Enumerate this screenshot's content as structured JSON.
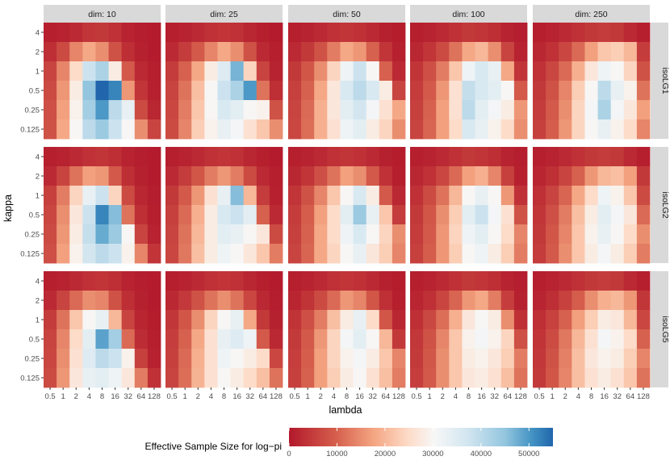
{
  "chart_data": {
    "type": "heatmap",
    "xlabel": "lambda",
    "ylabel": "kappa",
    "x_categories": [
      "0.5",
      "1",
      "2",
      "4",
      "8",
      "16",
      "32",
      "64",
      "128"
    ],
    "y_categories": [
      "4",
      "2",
      "1",
      "0.5",
      "0.25",
      "0.125"
    ],
    "column_facets": [
      "dim: 10",
      "dim: 25",
      "dim: 50",
      "dim: 100",
      "dim: 250"
    ],
    "row_facets": [
      "isoLG1",
      "isoLG2",
      "isoLG5"
    ],
    "legend": {
      "title": "Effective Sample Size for log−pi",
      "ticks": [
        "0",
        "10000",
        "20000",
        "30000",
        "40000",
        "50000"
      ],
      "min": 0,
      "max": 55000,
      "colors": {
        "low": "#b2182b",
        "low_mid": "#ef8a62",
        "low_mid2": "#fddbc7",
        "mid": "#f7f7f7",
        "high_mid": "#d1e5f0",
        "high_mid2": "#67a9cf",
        "high": "#2166ac"
      }
    },
    "panels": [
      {
        "column": "dim: 10",
        "row": "isoLG1",
        "values": [
          [
            1000,
            1500,
            2500,
            4000,
            4500,
            3500,
            1500,
            800,
            500
          ],
          [
            3000,
            7000,
            14000,
            18000,
            15000,
            8000,
            3000,
            1200,
            600
          ],
          [
            6000,
            14000,
            25000,
            38000,
            42000,
            28000,
            9000,
            2500,
            900
          ],
          [
            7000,
            16000,
            28000,
            45000,
            55000,
            52000,
            16000,
            4000,
            1200
          ],
          [
            7500,
            17000,
            29000,
            43000,
            50000,
            40000,
            33000,
            7000,
            2000
          ],
          [
            8000,
            18000,
            30000,
            40000,
            44000,
            38000,
            30000,
            15000,
            6000
          ]
        ]
      },
      {
        "column": "dim: 25",
        "row": "isoLG1",
        "values": [
          [
            1000,
            1500,
            2500,
            3500,
            4000,
            3500,
            2000,
            1000,
            600
          ],
          [
            2500,
            5000,
            9000,
            14000,
            18000,
            15000,
            8000,
            2500,
            900
          ],
          [
            5000,
            10000,
            18000,
            28000,
            35000,
            47000,
            24000,
            6000,
            1500
          ],
          [
            6000,
            12000,
            21000,
            30000,
            38000,
            42000,
            50000,
            12000,
            3000
          ],
          [
            6500,
            13000,
            22000,
            30000,
            36000,
            34000,
            30000,
            29000,
            8000
          ],
          [
            7000,
            14000,
            23000,
            29000,
            33000,
            31000,
            26000,
            22000,
            15000
          ]
        ]
      },
      {
        "column": "dim: 50",
        "row": "isoLG1",
        "values": [
          [
            1000,
            1500,
            2500,
            3500,
            4000,
            3500,
            2500,
            1200,
            700
          ],
          [
            2500,
            4500,
            8000,
            13000,
            18000,
            16000,
            10000,
            4000,
            1200
          ],
          [
            4500,
            8500,
            15000,
            24000,
            32000,
            38000,
            30000,
            10000,
            2500
          ],
          [
            5500,
            10000,
            18000,
            27000,
            36000,
            40000,
            36000,
            28000,
            6000
          ],
          [
            6000,
            11000,
            19000,
            27000,
            34000,
            37000,
            31000,
            26000,
            18000
          ],
          [
            6500,
            11500,
            19000,
            26000,
            32000,
            34000,
            28000,
            24000,
            15000
          ]
        ]
      },
      {
        "column": "dim: 100",
        "row": "isoLG1",
        "values": [
          [
            1000,
            1500,
            2500,
            3500,
            4500,
            4000,
            3000,
            1500,
            800
          ],
          [
            2000,
            4000,
            7000,
            12000,
            18000,
            20000,
            15000,
            6000,
            1500
          ],
          [
            4000,
            7500,
            13000,
            22000,
            32000,
            36000,
            33000,
            18000,
            4000
          ],
          [
            5000,
            9000,
            16000,
            26000,
            39000,
            36000,
            34000,
            30000,
            9000
          ],
          [
            5500,
            10000,
            17000,
            26000,
            40000,
            34000,
            31000,
            28000,
            16000
          ],
          [
            6000,
            10500,
            17000,
            25000,
            36000,
            33000,
            29000,
            25000,
            15000
          ]
        ]
      },
      {
        "column": "dim: 250",
        "row": "isoLG1",
        "values": [
          [
            1000,
            1500,
            2500,
            3500,
            4500,
            5000,
            4500,
            2500,
            1000
          ],
          [
            2000,
            3500,
            6500,
            11000,
            17000,
            22000,
            23000,
            20000,
            5000
          ],
          [
            3500,
            6500,
            11000,
            19000,
            27000,
            32000,
            30000,
            24000,
            8000
          ],
          [
            4500,
            8000,
            14000,
            23000,
            30000,
            40000,
            33000,
            29000,
            12000
          ],
          [
            5000,
            9000,
            15000,
            24000,
            31000,
            42000,
            31000,
            27000,
            17000
          ],
          [
            5500,
            9500,
            16000,
            24000,
            30000,
            33000,
            29000,
            25000,
            14000
          ]
        ]
      },
      {
        "column": "dim: 10",
        "row": "isoLG2",
        "values": [
          [
            1000,
            1500,
            2500,
            3500,
            4000,
            3000,
            1500,
            800,
            500
          ],
          [
            2500,
            6000,
            12000,
            17000,
            16000,
            9000,
            3000,
            1200,
            600
          ],
          [
            5500,
            13000,
            24000,
            33000,
            38000,
            24000,
            7000,
            2000,
            800
          ],
          [
            6500,
            15000,
            27000,
            38000,
            52000,
            46000,
            12000,
            3000,
            1000
          ],
          [
            7000,
            16000,
            28000,
            39000,
            48000,
            44000,
            30000,
            6000,
            1500
          ],
          [
            7500,
            17000,
            29000,
            37000,
            40000,
            38000,
            29000,
            14000,
            4000
          ]
        ]
      },
      {
        "column": "dim: 25",
        "row": "isoLG2",
        "values": [
          [
            1000,
            1500,
            2500,
            3500,
            4000,
            3500,
            2000,
            1000,
            600
          ],
          [
            2500,
            5000,
            8500,
            13000,
            16000,
            13000,
            7000,
            2500,
            900
          ],
          [
            4500,
            9000,
            16000,
            26000,
            33000,
            46000,
            20000,
            5000,
            1300
          ],
          [
            5500,
            11000,
            19000,
            28000,
            36000,
            38000,
            34000,
            10000,
            2500
          ],
          [
            6000,
            12000,
            20000,
            28000,
            34000,
            33000,
            30000,
            27000,
            7000
          ],
          [
            6500,
            12500,
            21000,
            28000,
            32000,
            30000,
            27000,
            22000,
            13000
          ]
        ]
      },
      {
        "column": "dim: 50",
        "row": "isoLG2",
        "values": [
          [
            1000,
            1500,
            2500,
            3500,
            4000,
            3500,
            2500,
            1200,
            700
          ],
          [
            2000,
            4000,
            7500,
            12000,
            17000,
            15000,
            9000,
            3500,
            1000
          ],
          [
            4000,
            8000,
            14000,
            22000,
            30000,
            36000,
            28000,
            9000,
            2200
          ],
          [
            5000,
            9500,
            17000,
            25000,
            34000,
            44000,
            33000,
            22000,
            5000
          ],
          [
            5500,
            10000,
            18000,
            25000,
            32000,
            36000,
            30000,
            24000,
            15000
          ],
          [
            6000,
            10500,
            18000,
            24000,
            30000,
            33000,
            27000,
            23000,
            14000
          ]
        ]
      },
      {
        "column": "dim: 100",
        "row": "isoLG2",
        "values": [
          [
            1000,
            1500,
            2500,
            3500,
            4500,
            4000,
            3000,
            1500,
            800
          ],
          [
            2000,
            3500,
            6500,
            11000,
            17000,
            19000,
            14000,
            5500,
            1300
          ],
          [
            3500,
            7000,
            12000,
            20000,
            30000,
            33000,
            30000,
            16000,
            3500
          ],
          [
            4500,
            8500,
            15000,
            23000,
            34000,
            38000,
            31000,
            26000,
            8000
          ],
          [
            5000,
            9000,
            16000,
            24000,
            32000,
            34000,
            30000,
            25000,
            14000
          ],
          [
            5500,
            9500,
            16000,
            23000,
            30000,
            32000,
            28000,
            23000,
            13000
          ]
        ]
      },
      {
        "column": "dim: 250",
        "row": "isoLG2",
        "values": [
          [
            1000,
            1500,
            2500,
            3500,
            4500,
            5000,
            4500,
            2500,
            1000
          ],
          [
            1800,
            3200,
            6000,
            10000,
            16000,
            20000,
            21000,
            17000,
            4500
          ],
          [
            3200,
            6000,
            10500,
            18000,
            25000,
            32000,
            29000,
            22000,
            7000
          ],
          [
            4000,
            7500,
            13000,
            21000,
            28000,
            34000,
            31000,
            27000,
            11000
          ],
          [
            4500,
            8500,
            14000,
            22000,
            29000,
            33000,
            30000,
            25000,
            15000
          ],
          [
            5000,
            9000,
            15000,
            22000,
            28000,
            31000,
            28000,
            23000,
            13000
          ]
        ]
      },
      {
        "column": "dim: 10",
        "row": "isoLG5",
        "values": [
          [
            1000,
            1500,
            2500,
            3500,
            4000,
            3000,
            1500,
            800,
            500
          ],
          [
            2500,
            6000,
            11000,
            15000,
            14000,
            8000,
            3000,
            1200,
            600
          ],
          [
            5000,
            12000,
            22000,
            30000,
            33000,
            20000,
            6000,
            1800,
            700
          ],
          [
            6000,
            14000,
            25000,
            34000,
            49000,
            43000,
            11000,
            2800,
            900
          ],
          [
            6500,
            15000,
            26000,
            35000,
            40000,
            38000,
            29000,
            5500,
            1400
          ],
          [
            7000,
            16000,
            27000,
            33000,
            34000,
            32000,
            27000,
            13000,
            3500
          ]
        ]
      },
      {
        "column": "dim: 25",
        "row": "isoLG5",
        "values": [
          [
            1000,
            1500,
            2500,
            3500,
            4000,
            3500,
            2000,
            1000,
            600
          ],
          [
            2300,
            4600,
            8000,
            12000,
            15000,
            12000,
            6500,
            2300,
            800
          ],
          [
            4200,
            8500,
            15000,
            24000,
            30000,
            33000,
            18000,
            4500,
            1200
          ],
          [
            5200,
            10000,
            18000,
            26000,
            33000,
            35000,
            32000,
            9000,
            2300
          ],
          [
            5600,
            11000,
            19000,
            26000,
            32000,
            30000,
            28000,
            25000,
            6500
          ],
          [
            6000,
            11500,
            19500,
            26000,
            30000,
            28000,
            25000,
            21000,
            12000
          ]
        ]
      },
      {
        "column": "dim: 50",
        "row": "isoLG5",
        "values": [
          [
            1000,
            1500,
            2500,
            3500,
            4000,
            3500,
            2500,
            1200,
            700
          ],
          [
            1900,
            3800,
            7000,
            11000,
            16000,
            14000,
            8500,
            3300,
            1000
          ],
          [
            3800,
            7500,
            13000,
            21000,
            28000,
            33000,
            25000,
            8500,
            2000
          ],
          [
            4700,
            9000,
            16000,
            24000,
            31000,
            34000,
            30000,
            20000,
            4500
          ],
          [
            5200,
            9500,
            17000,
            24000,
            29000,
            31000,
            28000,
            22000,
            14000
          ],
          [
            5600,
            10000,
            17000,
            23000,
            28000,
            30000,
            26000,
            21000,
            13000
          ]
        ]
      },
      {
        "column": "dim: 100",
        "row": "isoLG5",
        "values": [
          [
            1000,
            1500,
            2500,
            3500,
            4500,
            4000,
            3000,
            1500,
            800
          ],
          [
            1800,
            3300,
            6200,
            10500,
            16000,
            18000,
            13000,
            5200,
            1200
          ],
          [
            3300,
            6600,
            11500,
            19000,
            27000,
            30000,
            28000,
            15000,
            3300
          ],
          [
            4300,
            8000,
            14000,
            22000,
            29000,
            31000,
            29000,
            24000,
            7500
          ],
          [
            4700,
            8600,
            15000,
            22000,
            28000,
            29000,
            27000,
            23000,
            13000
          ],
          [
            5200,
            9000,
            15000,
            22000,
            27000,
            28000,
            26000,
            21000,
            12000
          ]
        ]
      },
      {
        "column": "dim: 250",
        "row": "isoLG5",
        "values": [
          [
            1000,
            1500,
            2500,
            3500,
            4500,
            5000,
            4500,
            2500,
            1000
          ],
          [
            1700,
            3000,
            5700,
            9500,
            15000,
            19000,
            20000,
            16000,
            4200
          ],
          [
            3000,
            5700,
            10000,
            17000,
            23000,
            28000,
            27000,
            20000,
            6500
          ],
          [
            3800,
            7100,
            12500,
            20000,
            26000,
            31000,
            29000,
            25000,
            10000
          ],
          [
            4300,
            8000,
            13500,
            21000,
            27000,
            29000,
            28000,
            23000,
            14000
          ],
          [
            4700,
            8500,
            14000,
            21000,
            26000,
            28000,
            26000,
            22000,
            12000
          ]
        ]
      }
    ]
  }
}
